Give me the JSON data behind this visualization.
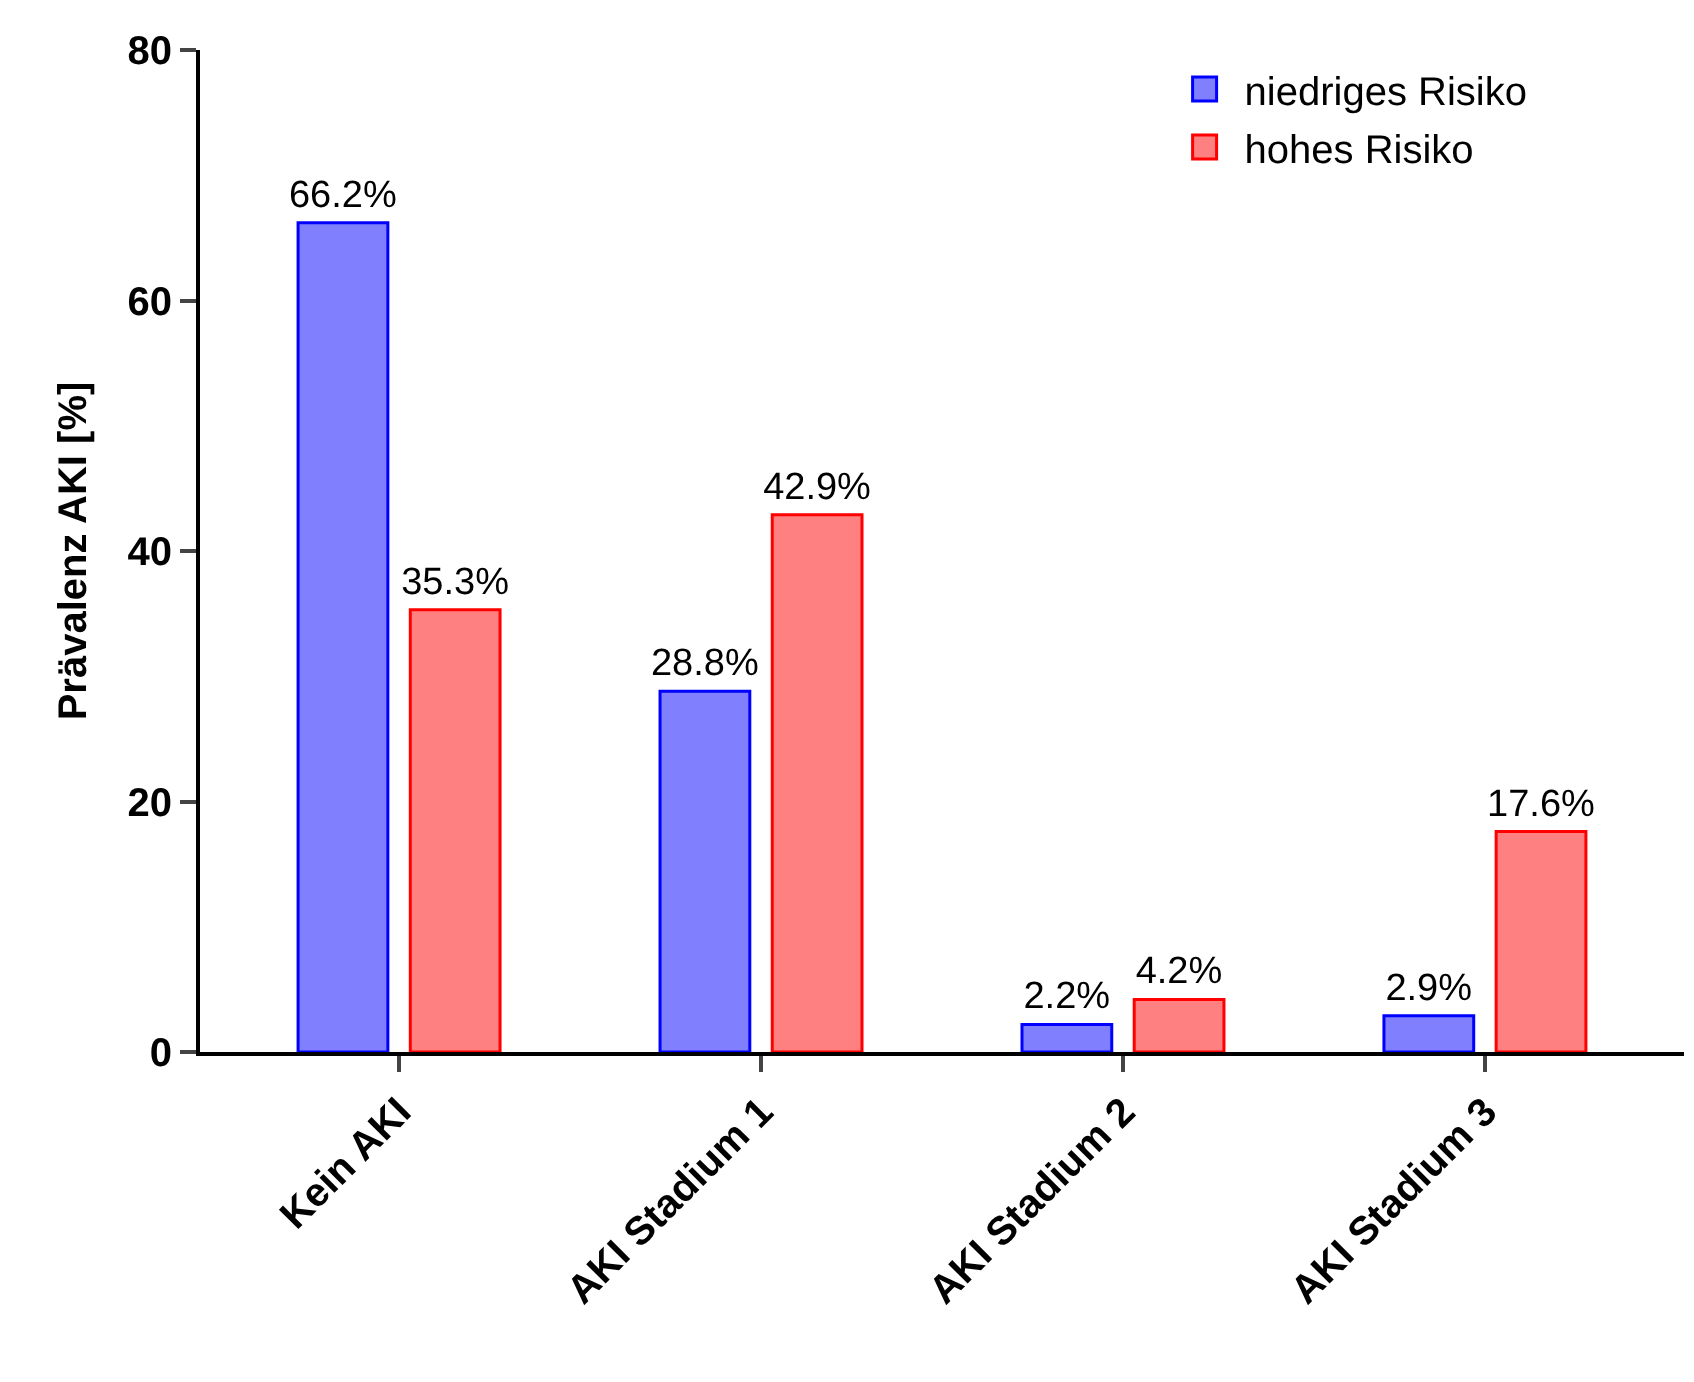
{
  "chart_data": {
    "type": "bar",
    "ylabel": "Prävalenz AKI [%]",
    "categories": [
      "Kein AKI",
      "AKI Stadium 1",
      "AKI Stadium 2",
      "AKI Stadium 3"
    ],
    "series": [
      {
        "name": "niedriges Risiko",
        "color": "#8080ff",
        "values": [
          66.2,
          28.8,
          2.2,
          2.9
        ],
        "value_labels": [
          "66.2%",
          "28.8%",
          "2.2%",
          "2.9%"
        ]
      },
      {
        "name": "hohes Risiko",
        "color": "#ff8080",
        "values": [
          35.3,
          42.9,
          4.2,
          17.6
        ],
        "value_labels": [
          "35.3%",
          "42.9%",
          "4.2%",
          "17.6%"
        ]
      }
    ],
    "ylim": [
      0,
      80
    ],
    "yticks": [
      0,
      20,
      40,
      60,
      80
    ],
    "legend": "top right"
  }
}
